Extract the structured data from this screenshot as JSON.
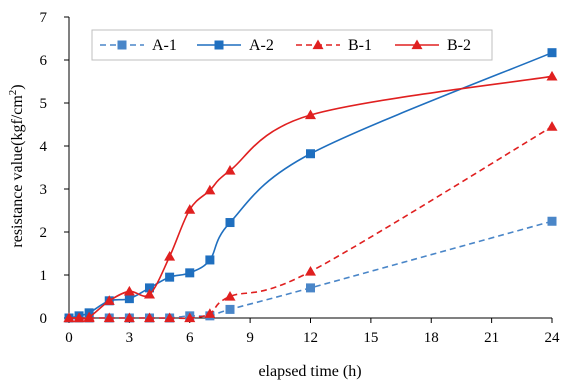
{
  "chart_data": {
    "type": "line",
    "title": "",
    "xlabel": "elapsed time (h)",
    "ylabel": "resistance value(kgf/cm",
    "ylabel_sup": "2",
    "ylabel_tail": ")",
    "xlim": [
      0,
      24
    ],
    "ylim": [
      0,
      7
    ],
    "xticks": [
      0,
      3,
      6,
      9,
      12,
      15,
      18,
      21,
      24
    ],
    "xtick_labels": [
      "0",
      "3",
      "6",
      "9",
      "12",
      "15",
      "18",
      "21",
      "24"
    ],
    "yticks": [
      0,
      1,
      2,
      3,
      4,
      5,
      6,
      7
    ],
    "ytick_labels": [
      "0",
      "1",
      "2",
      "3",
      "4",
      "5",
      "6",
      "7"
    ],
    "grid": false,
    "legend_position": "top",
    "series": [
      {
        "name": "A-1",
        "color": "#4a86c8",
        "dash": "dashed",
        "marker": "square",
        "x": [
          0,
          0.5,
          1,
          2,
          3,
          4,
          5,
          6,
          7,
          8,
          12,
          24
        ],
        "y": [
          0,
          0,
          0,
          0,
          0,
          0,
          0,
          0.05,
          0.05,
          0.2,
          0.7,
          2.25
        ]
      },
      {
        "name": "A-2",
        "color": "#1f6fbf",
        "dash": "solid",
        "marker": "square",
        "x": [
          0,
          0.5,
          1,
          2,
          3,
          4,
          5,
          6,
          7,
          8,
          12,
          24
        ],
        "y": [
          0,
          0.05,
          0.12,
          0.4,
          0.45,
          0.7,
          0.95,
          1.05,
          1.35,
          2.22,
          3.82,
          6.17
        ]
      },
      {
        "name": "B-1",
        "color": "#e02020",
        "dash": "dashed",
        "marker": "triangle",
        "x": [
          0,
          0.5,
          1,
          2,
          3,
          4,
          5,
          6,
          7,
          8,
          12,
          24
        ],
        "y": [
          0,
          0,
          0,
          0,
          0,
          0,
          0,
          0,
          0.1,
          0.5,
          1.08,
          4.45
        ]
      },
      {
        "name": "B-2",
        "color": "#e02020",
        "dash": "solid",
        "marker": "triangle",
        "x": [
          0,
          0.5,
          1,
          2,
          3,
          4,
          5,
          6,
          7,
          8,
          12,
          24
        ],
        "y": [
          0,
          0,
          0.02,
          0.4,
          0.62,
          0.55,
          1.43,
          2.52,
          2.97,
          3.43,
          4.72,
          5.62
        ]
      }
    ]
  }
}
